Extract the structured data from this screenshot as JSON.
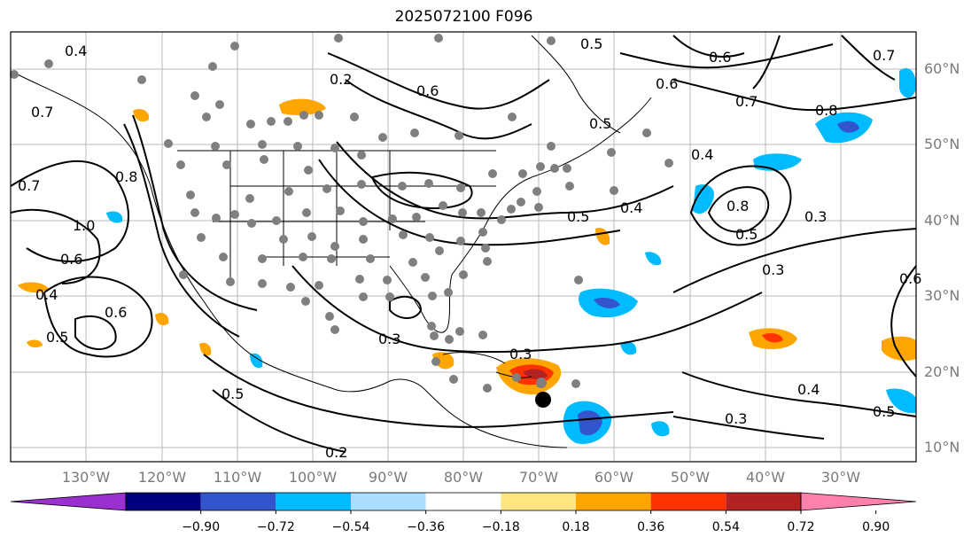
{
  "title": "2025072100 F096",
  "map": {
    "lat_labels": [
      "60°N",
      "50°N",
      "40°N",
      "30°N",
      "20°N",
      "10°N"
    ],
    "lon_labels": [
      "130°W",
      "120°W",
      "110°W",
      "100°W",
      "90°W",
      "80°W",
      "70°W",
      "60°W",
      "50°W",
      "40°W",
      "30°W"
    ],
    "contour_labels": [
      "0.4",
      "0.5",
      "0.6",
      "0.7",
      "0.8",
      "1.0",
      "0.6",
      "0.5",
      "0.4",
      "0.3",
      "0.2",
      "0.3",
      "0.5",
      "0.6",
      "0.7",
      "0.8",
      "0.4",
      "0.5",
      "0.4",
      "0.3",
      "0.5",
      "0.3",
      "0.4",
      "0.5",
      "0.3",
      "0.2",
      "0.6",
      "0.8",
      "0.7",
      "0.6",
      "0.7",
      "0.5",
      "0.6"
    ],
    "colors": {
      "land_border": "#000000",
      "grid": "#b0b0b0",
      "station_marker": "#7f7f7f",
      "storm_marker": "#000000"
    }
  },
  "colorbar": {
    "ticks": [
      "−0.90",
      "−0.72",
      "−0.54",
      "−0.36",
      "−0.18",
      "0.18",
      "0.36",
      "0.54",
      "0.72",
      "0.90"
    ],
    "colors": [
      "#9b30d0",
      "#00007f",
      "#3355cc",
      "#00bbff",
      "#aaddff",
      "#ffffff",
      "#ffe680",
      "#ffa500",
      "#ff3300",
      "#b22222",
      "#ff80a8"
    ]
  }
}
